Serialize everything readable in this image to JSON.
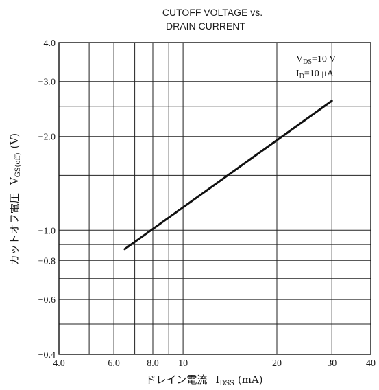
{
  "chart_data": {
    "type": "line",
    "title_lines": [
      "CUTOFF VOLTAGE vs.",
      "DRAIN CURRENT"
    ],
    "x_scale": "log",
    "y_scale": "log",
    "xlim": [
      4.0,
      40
    ],
    "ylim": [
      -0.4,
      -4.0
    ],
    "x_ticks": [
      {
        "value": 4.0,
        "label": "4.0"
      },
      {
        "value": 6.0,
        "label": "6.0"
      },
      {
        "value": 8.0,
        "label": "8.0"
      },
      {
        "value": 10,
        "label": "10"
      },
      {
        "value": 20,
        "label": "20"
      },
      {
        "value": 30,
        "label": "30"
      },
      {
        "value": 40,
        "label": "40"
      }
    ],
    "x_grid": [
      4,
      5,
      6,
      7,
      8,
      9,
      10,
      20,
      30,
      40
    ],
    "y_ticks": [
      {
        "value": -4.0,
        "label": "−4.0"
      },
      {
        "value": -3.0,
        "label": "−3.0"
      },
      {
        "value": -2.0,
        "label": "−2.0"
      },
      {
        "value": -1.0,
        "label": "−1.0"
      },
      {
        "value": -0.8,
        "label": "−0.8"
      },
      {
        "value": -0.6,
        "label": "−0.6"
      },
      {
        "value": -0.4,
        "label": "−0.4"
      }
    ],
    "y_grid": [
      -4.0,
      -3.0,
      -2.5,
      -2.0,
      -1.5,
      -1.0,
      -0.9,
      -0.8,
      -0.7,
      -0.6,
      -0.5,
      -0.4
    ],
    "grid": true,
    "xlabel": {
      "main": "ドレイン電流",
      "sym": "I",
      "sub": "DSS",
      "unit": "(mA)"
    },
    "ylabel": {
      "main": "カットオフ電圧",
      "sym": "V",
      "sub": "GS(off)",
      "unit": "(V)"
    },
    "annotations": [
      {
        "sym": "V",
        "sub": "DS",
        "rest": "=10 V"
      },
      {
        "sym": "I",
        "sub": "D",
        "rest": "=10 μA"
      }
    ],
    "series": [
      {
        "x": [
          6.5,
          30
        ],
        "y": [
          -0.87,
          -2.6
        ],
        "color": "#111111"
      }
    ]
  }
}
